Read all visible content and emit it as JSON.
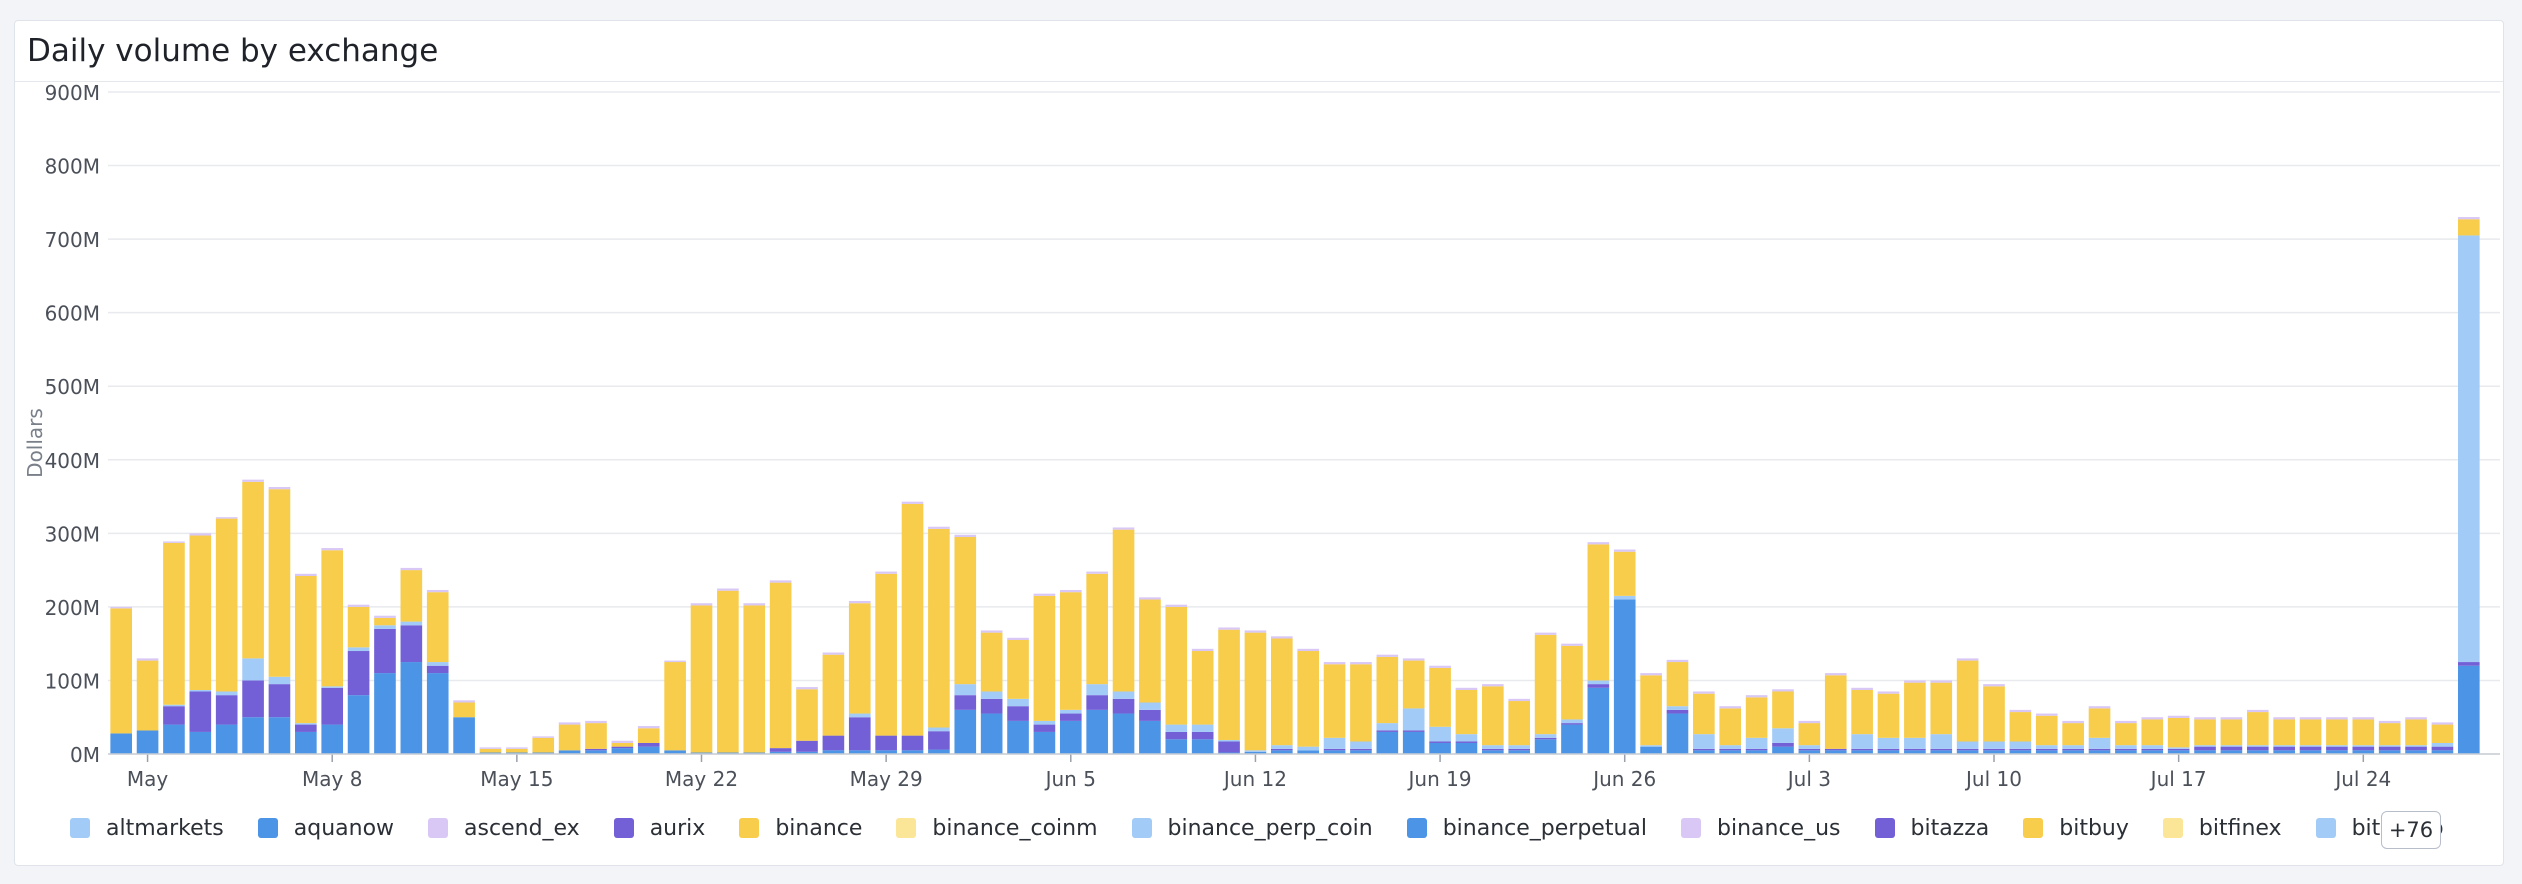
{
  "panel": {
    "title": "Daily volume by exchange"
  },
  "legend_more": "+76",
  "colors": {
    "binance": "#f7cd4b",
    "aquanow": "#4c94e6",
    "aurix": "#7360d6",
    "altmarkets": "#a3cbf7",
    "binance_coinm": "#fbe597",
    "ascend_ex": "#d9c8f5",
    "grid": "#e8eaee",
    "axis_text": "#4b5059"
  },
  "chart_data": {
    "type": "bar",
    "stacked": true,
    "title": "Daily volume by exchange",
    "ylabel": "Dollars",
    "xlabel": "",
    "ylim": [
      0,
      900000000
    ],
    "y_ticks": [
      0,
      100000000,
      200000000,
      300000000,
      400000000,
      500000000,
      600000000,
      700000000,
      800000000,
      900000000
    ],
    "y_tick_labels": [
      "0M",
      "100M",
      "200M",
      "300M",
      "400M",
      "500M",
      "600M",
      "700M",
      "800M",
      "900M"
    ],
    "x_tick_labels": [
      {
        "label": "May",
        "date": "2023-05-01"
      },
      {
        "label": "May 8",
        "date": "2023-05-08"
      },
      {
        "label": "May 15",
        "date": "2023-05-15"
      },
      {
        "label": "May 22",
        "date": "2023-05-22"
      },
      {
        "label": "May 29",
        "date": "2023-05-29"
      },
      {
        "label": "Jun 5",
        "date": "2023-06-05"
      },
      {
        "label": "Jun 12",
        "date": "2023-06-12"
      },
      {
        "label": "Jun 19",
        "date": "2023-06-19"
      },
      {
        "label": "Jun 26",
        "date": "2023-06-26"
      },
      {
        "label": "Jul 3",
        "date": "2023-07-03"
      },
      {
        "label": "Jul 10",
        "date": "2023-07-10"
      },
      {
        "label": "Jul 17",
        "date": "2023-07-17"
      },
      {
        "label": "Jul 24",
        "date": "2023-07-24"
      }
    ],
    "grid": true,
    "legend_position": "bottom",
    "legend": [
      "altmarkets",
      "aquanow",
      "ascend_ex",
      "aurix",
      "binance",
      "binance_coinm",
      "binance_perp_coin",
      "binance_perpetual",
      "binance_us",
      "bitazza",
      "bitbuy",
      "bitfinex",
      "bithumb"
    ],
    "legend_colors": [
      "#a3cbf7",
      "#4c94e6",
      "#d9c8f5",
      "#7360d6",
      "#f7cd4b",
      "#fbe597",
      "#a3cbf7",
      "#4c94e6",
      "#d9c8f5",
      "#7360d6",
      "#f7cd4b",
      "#fbe597",
      "#a3cbf7"
    ],
    "x": [
      "2023-04-30",
      "2023-05-01",
      "2023-05-02",
      "2023-05-03",
      "2023-05-04",
      "2023-05-05",
      "2023-05-06",
      "2023-05-07",
      "2023-05-08",
      "2023-05-09",
      "2023-05-10",
      "2023-05-11",
      "2023-05-12",
      "2023-05-13",
      "2023-05-14",
      "2023-05-15",
      "2023-05-16",
      "2023-05-17",
      "2023-05-18",
      "2023-05-19",
      "2023-05-20",
      "2023-05-21",
      "2023-05-22",
      "2023-05-23",
      "2023-05-24",
      "2023-05-25",
      "2023-05-26",
      "2023-05-27",
      "2023-05-28",
      "2023-05-29",
      "2023-05-30",
      "2023-05-31",
      "2023-06-01",
      "2023-06-02",
      "2023-06-03",
      "2023-06-04",
      "2023-06-05",
      "2023-06-06",
      "2023-06-07",
      "2023-06-08",
      "2023-06-09",
      "2023-06-10",
      "2023-06-11",
      "2023-06-12",
      "2023-06-13",
      "2023-06-14",
      "2023-06-15",
      "2023-06-16",
      "2023-06-17",
      "2023-06-18",
      "2023-06-19",
      "2023-06-20",
      "2023-06-21",
      "2023-06-22",
      "2023-06-23",
      "2023-06-24",
      "2023-06-25",
      "2023-06-26",
      "2023-06-27",
      "2023-06-28",
      "2023-06-29",
      "2023-06-30",
      "2023-07-01",
      "2023-07-02",
      "2023-07-03",
      "2023-07-04",
      "2023-07-05",
      "2023-07-06",
      "2023-07-07",
      "2023-07-08",
      "2023-07-09",
      "2023-07-10",
      "2023-07-11",
      "2023-07-12",
      "2023-07-13",
      "2023-07-14",
      "2023-07-15",
      "2023-07-16",
      "2023-07-17",
      "2023-07-18",
      "2023-07-19",
      "2023-07-20",
      "2023-07-21",
      "2023-07-22",
      "2023-07-23",
      "2023-07-24",
      "2023-07-25",
      "2023-07-26",
      "2023-07-27",
      "2023-07-28"
    ],
    "series": [
      {
        "name": "aquanow",
        "values": [
          28,
          32,
          40,
          30,
          40,
          50,
          50,
          30,
          40,
          80,
          110,
          125,
          110,
          50,
          2,
          2,
          2,
          5,
          5,
          8,
          10,
          5,
          2,
          2,
          2,
          3,
          3,
          5,
          5,
          5,
          5,
          6,
          60,
          55,
          45,
          30,
          45,
          60,
          55,
          45,
          20,
          20,
          2,
          3,
          5,
          5,
          5,
          5,
          30,
          30,
          15,
          15,
          5,
          5,
          20,
          40,
          90,
          210,
          10,
          55,
          5,
          5,
          5,
          10,
          5,
          5,
          5,
          5,
          5,
          5,
          5,
          5,
          5,
          5,
          5,
          5,
          5,
          5,
          5,
          5,
          5,
          5,
          5,
          5,
          5,
          5,
          5,
          5,
          5,
          120
        ]
      },
      {
        "name": "aurix",
        "values": [
          0,
          0,
          25,
          55,
          40,
          50,
          45,
          10,
          50,
          60,
          60,
          50,
          10,
          0,
          0,
          0,
          0,
          0,
          2,
          2,
          5,
          0,
          0,
          0,
          0,
          5,
          15,
          20,
          45,
          20,
          20,
          25,
          20,
          20,
          20,
          10,
          10,
          20,
          20,
          15,
          10,
          10,
          15,
          0,
          2,
          0,
          2,
          2,
          2,
          2,
          2,
          2,
          2,
          2,
          2,
          2,
          5,
          0,
          0,
          5,
          2,
          2,
          2,
          5,
          2,
          2,
          2,
          2,
          2,
          2,
          2,
          2,
          2,
          2,
          2,
          2,
          2,
          2,
          2,
          5,
          5,
          5,
          5,
          5,
          5,
          5,
          5,
          5,
          5,
          5
        ]
      },
      {
        "name": "altmarkets",
        "values": [
          0,
          0,
          2,
          2,
          5,
          30,
          10,
          2,
          2,
          5,
          5,
          5,
          5,
          0,
          0,
          0,
          0,
          0,
          0,
          0,
          0,
          0,
          0,
          0,
          0,
          0,
          0,
          0,
          5,
          0,
          0,
          5,
          15,
          10,
          10,
          5,
          5,
          15,
          10,
          10,
          10,
          10,
          2,
          2,
          5,
          5,
          15,
          10,
          10,
          30,
          20,
          10,
          5,
          5,
          5,
          5,
          5,
          5,
          2,
          5,
          20,
          5,
          15,
          20,
          5,
          0,
          20,
          15,
          15,
          20,
          10,
          10,
          10,
          5,
          5,
          15,
          5,
          5,
          2,
          2,
          2,
          2,
          2,
          2,
          2,
          2,
          2,
          2,
          5,
          580
        ]
      },
      {
        "name": "binance",
        "values": [
          170,
          95,
          220,
          210,
          235,
          240,
          255,
          200,
          185,
          55,
          10,
          70,
          95,
          20,
          5,
          5,
          20,
          35,
          35,
          5,
          20,
          120,
          200,
          220,
          200,
          225,
          70,
          110,
          150,
          220,
          315,
          270,
          200,
          80,
          80,
          170,
          160,
          150,
          220,
          140,
          160,
          100,
          150,
          160,
          145,
          130,
          100,
          105,
          90,
          65,
          80,
          60,
          80,
          60,
          135,
          100,
          185,
          60,
          95,
          60,
          55,
          50,
          55,
          50,
          30,
          100,
          60,
          60,
          75,
          70,
          110,
          75,
          40,
          40,
          30,
          40,
          30,
          35,
          40,
          35,
          35,
          45,
          35,
          35,
          35,
          35,
          30,
          35,
          25,
          22
        ]
      },
      {
        "name": "ascend_ex",
        "values": [
          2,
          3,
          2,
          3,
          2,
          3,
          3,
          3,
          3,
          3,
          3,
          3,
          3,
          3,
          2,
          2,
          2,
          3,
          3,
          3,
          3,
          2,
          3,
          3,
          3,
          3,
          3,
          3,
          3,
          3,
          3,
          3,
          3,
          3,
          3,
          3,
          3,
          3,
          3,
          3,
          3,
          3,
          3,
          3,
          3,
          3,
          3,
          3,
          3,
          3,
          3,
          3,
          3,
          3,
          3,
          3,
          3,
          3,
          3,
          3,
          3,
          3,
          3,
          3,
          3,
          3,
          3,
          3,
          3,
          3,
          3,
          3,
          3,
          3,
          3,
          3,
          3,
          3,
          3,
          3,
          3,
          3,
          3,
          3,
          3,
          3,
          3,
          3,
          3,
          3
        ]
      }
    ]
  }
}
